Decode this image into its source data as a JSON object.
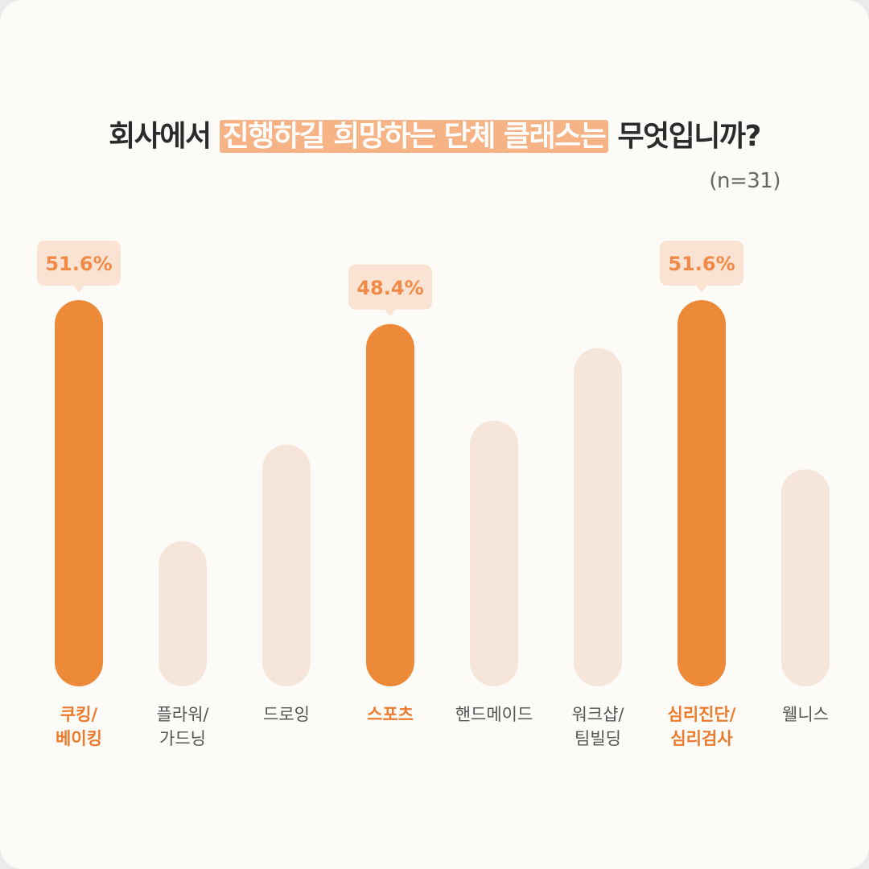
{
  "title": {
    "before": "회사에서",
    "highlight": "진행하길 희망하는 단체 클래스는",
    "after": "무엇입니까?"
  },
  "sample_size": "(n=31)",
  "colors": {
    "highlight_bar": "#ed8a3a",
    "muted_bar": "#f6e5da",
    "callout_bg": "#fbe3d3",
    "callout_text": "#f08a46",
    "label_highlight": "#ec7b2e",
    "label_muted": "#555555"
  },
  "chart_data": {
    "type": "bar",
    "title": "회사에서 진행하길 희망하는 단체 클래스는 무엇입니까?",
    "unit": "%",
    "ylim": [
      0,
      51.6
    ],
    "grid": false,
    "categories": [
      "쿠킹/\n베이킹",
      "플라워/\n가드닝",
      "드로잉",
      "스포츠",
      "핸드메이드",
      "워크샵/\n팀빌딩",
      "심리진단/\n심리검사",
      "웰니스"
    ],
    "values": [
      51.6,
      19.4,
      32.3,
      48.4,
      35.5,
      45.2,
      51.6,
      29.0
    ],
    "highlighted": [
      true,
      false,
      false,
      true,
      false,
      false,
      true,
      false
    ],
    "data_labels": [
      "51.6%",
      "",
      "",
      "48.4%",
      "",
      "",
      "51.6%",
      ""
    ]
  }
}
